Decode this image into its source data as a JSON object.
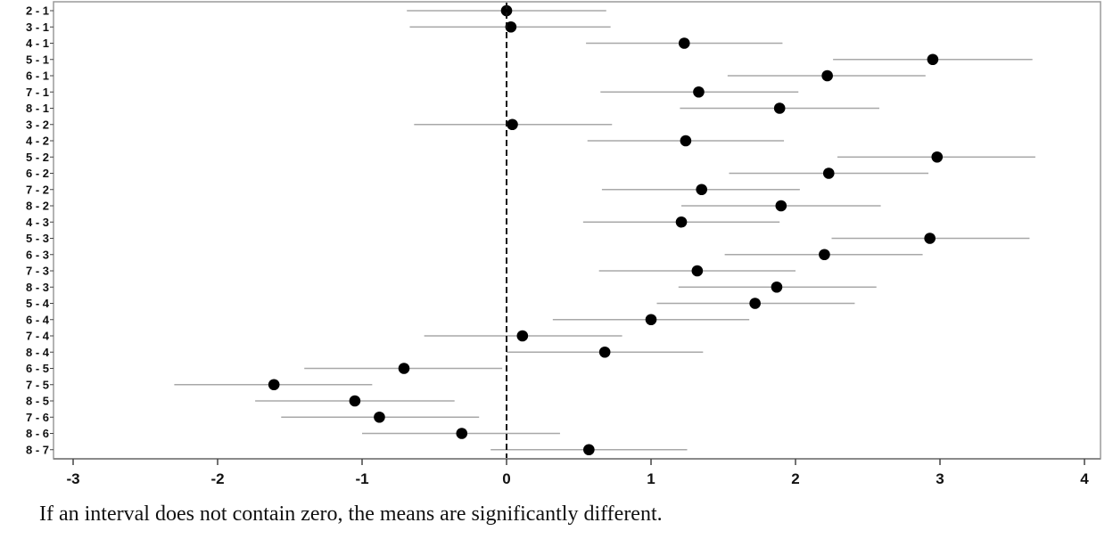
{
  "chart_data": {
    "type": "interval",
    "title": "",
    "xlabel": "",
    "ylabel": "",
    "xlim": [
      -3,
      4
    ],
    "x_ticks": [
      -3,
      -2,
      -1,
      0,
      1,
      2,
      3,
      4
    ],
    "reference_line_x": 0,
    "grid": false,
    "legend": "none",
    "categories": [
      "2 - 1",
      "3 - 1",
      "4 - 1",
      "5 - 1",
      "6 - 1",
      "7 - 1",
      "8 - 1",
      "3 - 2",
      "4 - 2",
      "5 - 2",
      "6 - 2",
      "7 - 2",
      "8 - 2",
      "4 - 3",
      "5 - 3",
      "6 - 3",
      "7 - 3",
      "8 - 3",
      "5 - 4",
      "6 - 4",
      "7 - 4",
      "8 - 4",
      "6 - 5",
      "7 - 5",
      "8 - 5",
      "7 - 6",
      "8 - 6",
      "8 - 7"
    ],
    "estimates": [
      0.0,
      0.03,
      1.23,
      2.95,
      2.22,
      1.33,
      1.89,
      0.04,
      1.24,
      2.98,
      2.23,
      1.35,
      1.9,
      1.21,
      2.93,
      2.2,
      1.32,
      1.87,
      1.72,
      1.0,
      0.11,
      0.68,
      -0.71,
      -1.61,
      -1.05,
      -0.88,
      -0.31,
      0.57
    ],
    "lower": [
      -0.69,
      -0.67,
      0.55,
      2.26,
      1.53,
      0.65,
      1.2,
      -0.64,
      0.56,
      2.29,
      1.54,
      0.66,
      1.21,
      0.53,
      2.25,
      1.51,
      0.64,
      1.19,
      1.04,
      0.32,
      -0.57,
      0.0,
      -1.4,
      -2.3,
      -1.74,
      -1.56,
      -1.0,
      -0.11
    ],
    "upper": [
      0.69,
      0.72,
      1.91,
      3.64,
      2.9,
      2.02,
      2.58,
      0.73,
      1.92,
      3.66,
      2.92,
      2.03,
      2.59,
      1.89,
      3.62,
      2.88,
      2.0,
      2.56,
      2.41,
      1.68,
      0.8,
      1.36,
      -0.03,
      -0.93,
      -0.36,
      -0.19,
      0.37,
      1.25
    ]
  },
  "caption": "If an interval does not contain zero, the means are significantly different."
}
